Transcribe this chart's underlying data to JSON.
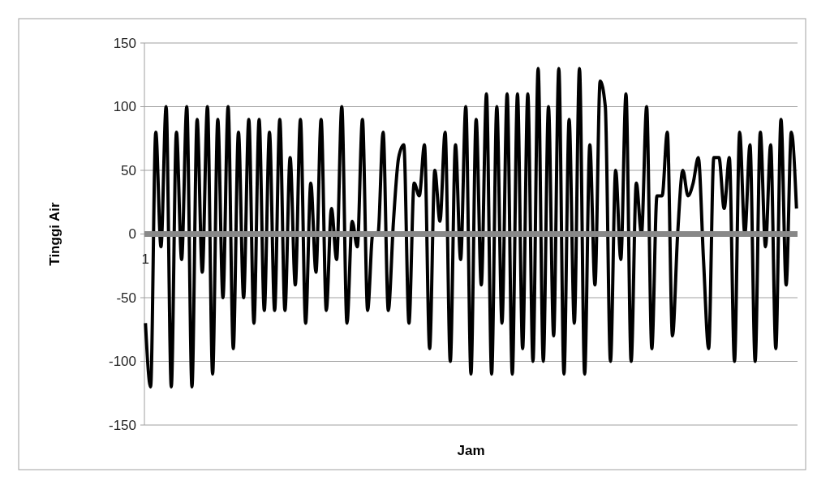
{
  "chart_data": {
    "type": "line",
    "xlabel": "Jam",
    "ylabel": "Tinggi Air",
    "categories": [
      "1",
      null,
      null,
      null,
      null,
      null,
      null,
      null,
      null,
      null,
      null,
      null,
      null,
      null,
      null,
      null,
      null,
      null,
      null,
      null,
      null,
      null,
      null,
      null,
      null,
      null,
      null,
      null,
      null,
      null,
      null,
      null,
      null,
      null,
      null,
      null,
      null,
      null,
      null,
      null,
      null,
      null,
      null,
      null,
      null,
      null,
      null,
      null,
      null,
      null,
      null,
      null,
      null,
      null,
      null,
      null,
      null,
      null,
      null,
      null,
      null,
      null,
      null,
      null,
      null,
      null,
      null,
      null,
      null,
      null,
      null,
      null,
      null,
      null,
      null,
      null,
      null,
      null,
      null,
      null,
      null,
      null,
      null,
      null,
      null,
      null,
      null,
      null,
      null,
      null,
      null,
      null,
      null,
      null,
      null,
      null,
      null,
      null,
      null,
      null,
      null,
      null,
      null,
      null,
      null,
      null,
      null,
      null,
      null,
      null,
      null,
      null,
      null,
      null,
      null,
      null,
      null,
      null,
      null,
      null,
      null,
      null,
      null,
      null,
      null,
      null,
      null
    ],
    "series": [
      {
        "color": "#000000",
        "values": [
          -70,
          -120,
          80,
          -10,
          100,
          -120,
          80,
          -20,
          100,
          -120,
          90,
          -30,
          100,
          -110,
          90,
          -50,
          100,
          -90,
          80,
          -50,
          90,
          -70,
          90,
          -60,
          80,
          -60,
          90,
          -60,
          60,
          -40,
          90,
          -70,
          40,
          -30,
          90,
          -60,
          20,
          -20,
          100,
          -70,
          10,
          -10,
          90,
          -60,
          0,
          0,
          80,
          -60,
          10,
          60,
          70,
          -70,
          40,
          30,
          70,
          -90,
          50,
          10,
          80,
          -100,
          70,
          -20,
          100,
          -110,
          90,
          -40,
          110,
          -110,
          100,
          -70,
          110,
          -110,
          110,
          -90,
          110,
          -100,
          130,
          -100,
          100,
          -80,
          130,
          -110,
          90,
          -70,
          130,
          -110,
          70,
          -40,
          120,
          100,
          -100,
          50,
          -20,
          110,
          -100,
          40,
          0,
          100,
          -90,
          30,
          30,
          80,
          -80,
          0,
          50,
          30,
          40,
          60,
          -20,
          -90,
          60,
          60,
          20,
          60,
          -100,
          80,
          0,
          70,
          -100,
          80,
          -10,
          70,
          -90,
          90,
          -40,
          80,
          20
        ]
      }
    ],
    "ylim": [
      -150,
      150
    ],
    "yticks": [
      -150,
      -100,
      -50,
      0,
      50,
      100,
      150
    ],
    "grid": "y",
    "marker": "none",
    "line_style": "solid"
  }
}
